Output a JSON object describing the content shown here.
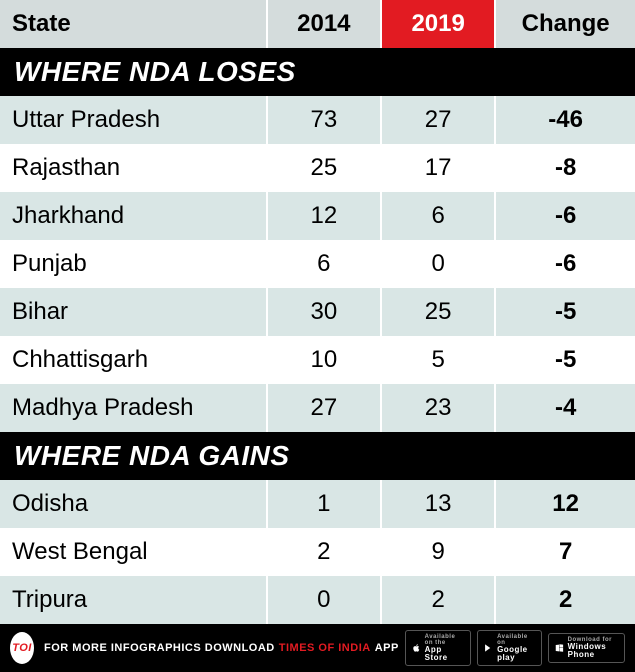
{
  "header": {
    "col_state": "State",
    "col_2014": "2014",
    "col_2019": "2019",
    "col_change": "Change",
    "highlight_col_bg": "#e21b22"
  },
  "sections": [
    {
      "title": "WHERE NDA LOSES",
      "rows": [
        {
          "state": "Uttar Pradesh",
          "y2014": "73",
          "y2019": "27",
          "change": "-46"
        },
        {
          "state": "Rajasthan",
          "y2014": "25",
          "y2019": "17",
          "change": "-8"
        },
        {
          "state": "Jharkhand",
          "y2014": "12",
          "y2019": "6",
          "change": "-6"
        },
        {
          "state": "Punjab",
          "y2014": "6",
          "y2019": "0",
          "change": "-6"
        },
        {
          "state": "Bihar",
          "y2014": "30",
          "y2019": "25",
          "change": "-5"
        },
        {
          "state": "Chhattisgarh",
          "y2014": "10",
          "y2019": "5",
          "change": "-5"
        },
        {
          "state": "Madhya Pradesh",
          "y2014": "27",
          "y2019": "23",
          "change": "-4"
        }
      ]
    },
    {
      "title": "WHERE NDA GAINS",
      "rows": [
        {
          "state": "Odisha",
          "y2014": "1",
          "y2019": "13",
          "change": "12"
        },
        {
          "state": "West Bengal",
          "y2014": "2",
          "y2019": "9",
          "change": "7"
        },
        {
          "state": "Tripura",
          "y2014": "0",
          "y2019": "2",
          "change": "2"
        }
      ]
    }
  ],
  "footer": {
    "logo_text": "TOI",
    "prefix": "FOR MORE  INFOGRAPHICS DOWNLOAD",
    "brand": "TIMES OF INDIA",
    "suffix": "APP",
    "stores": [
      {
        "line1": "Available on the",
        "line2": "App Store"
      },
      {
        "line1": "Available on",
        "line2": "Google play"
      },
      {
        "line1": "Download for",
        "line2": "Windows Phone"
      }
    ]
  },
  "style": {
    "row_odd_bg": "#d9e6e5",
    "row_even_bg": "#ffffff",
    "header_bg": "#d4dcdc",
    "section_bg": "#000000",
    "section_fg": "#ffffff",
    "font_size_header": 24,
    "font_size_cell": 24,
    "font_size_section": 28
  }
}
